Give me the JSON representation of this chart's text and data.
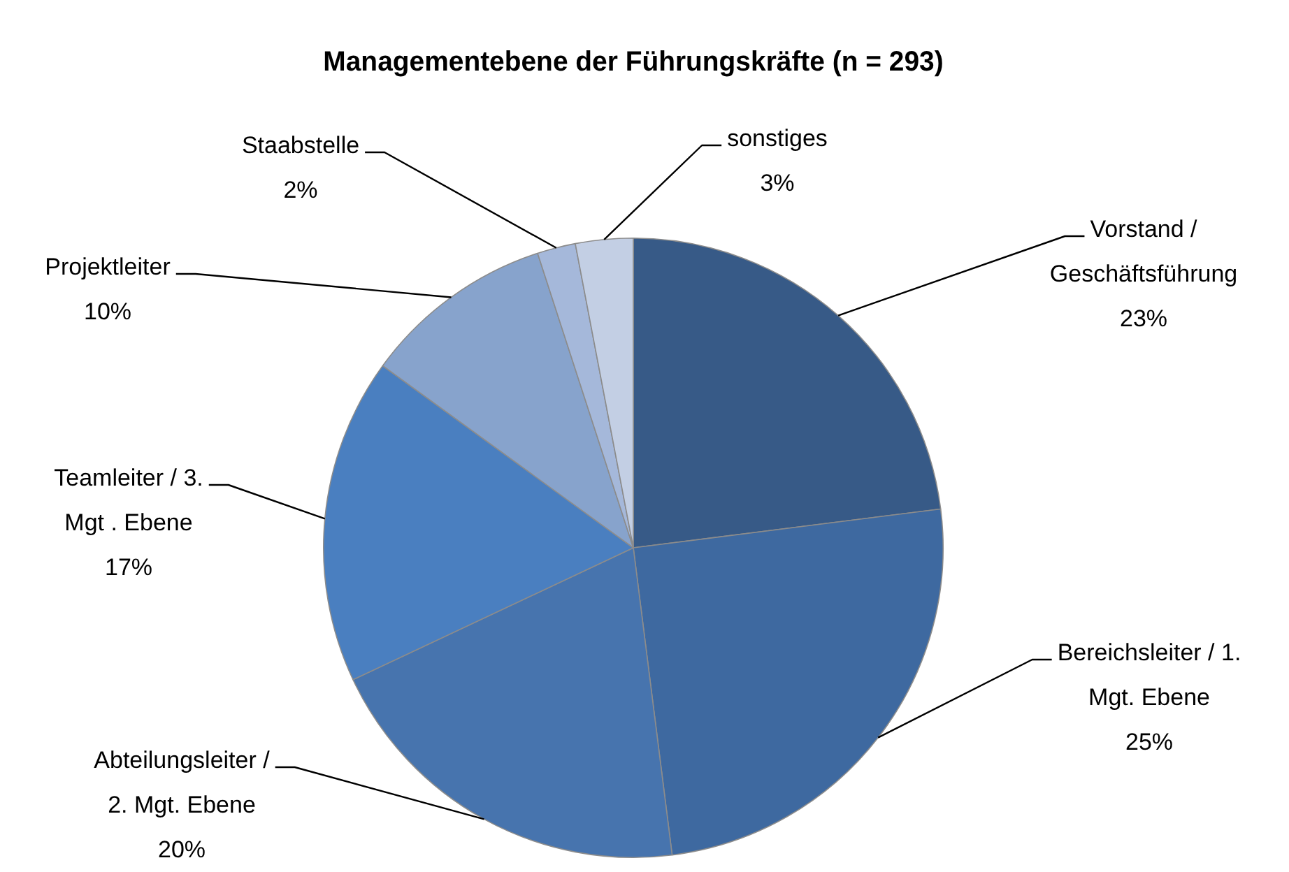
{
  "chart_data": {
    "type": "pie",
    "title": "Managementebene der Führungskräfte (n = 293)",
    "categories": [
      "Vorstand /\nGeschäftsführung",
      "Bereichsleiter / 1.\nMgt. Ebene",
      "Abteilungsleiter /\n2. Mgt. Ebene",
      "Teamleiter / 3.\nMgt . Ebene",
      "Projektleiter",
      "Staabstelle",
      "sonstiges"
    ],
    "values": [
      23,
      25,
      20,
      17,
      10,
      2,
      3
    ],
    "colors": [
      "#375a87",
      "#3e69a0",
      "#4774ae",
      "#4a7fc0",
      "#87a3cc",
      "#a5b8da",
      "#c3cfe4"
    ],
    "value_labels": [
      "23%",
      "25%",
      "20%",
      "17%",
      "10%",
      "2%",
      "3%"
    ],
    "legend": false
  }
}
